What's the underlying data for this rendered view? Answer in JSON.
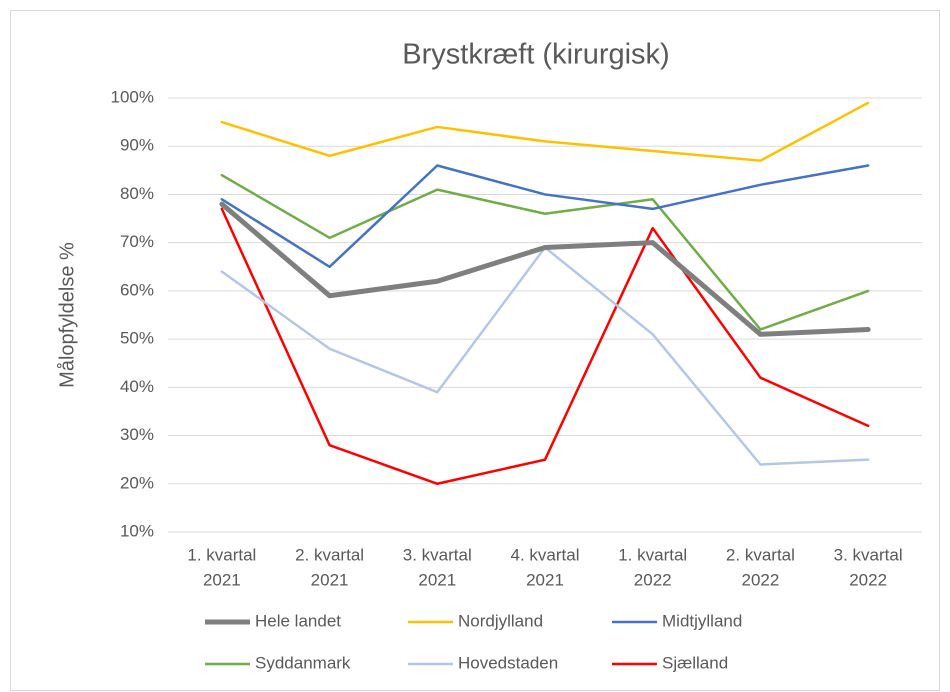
{
  "chart_data": {
    "type": "line",
    "title": "Brystkræft (kirurgisk)",
    "y_label": "Målopfyldelse %",
    "categories": [
      [
        "1. kvartal",
        "2021"
      ],
      [
        "2. kvartal",
        "2021"
      ],
      [
        "3. kvartal",
        "2021"
      ],
      [
        "4. kvartal",
        "2021"
      ],
      [
        "1. kvartal",
        "2022"
      ],
      [
        "2. kvartal",
        "2022"
      ],
      [
        "3. kvartal",
        "2022"
      ]
    ],
    "series": [
      {
        "name": "Hele landet",
        "color": "#7f7f7f",
        "width": 5,
        "values": [
          78,
          59,
          62,
          69,
          70,
          51,
          52
        ]
      },
      {
        "name": "Nordjylland",
        "color": "#ffc000",
        "width": 2.5,
        "values": [
          95,
          88,
          94,
          91,
          89,
          87,
          99
        ]
      },
      {
        "name": "Midtjylland",
        "color": "#4472c4",
        "width": 2.5,
        "values": [
          79,
          65,
          86,
          80,
          77,
          82,
          86
        ]
      },
      {
        "name": "Syddanmark",
        "color": "#70ad47",
        "width": 2.5,
        "values": [
          84,
          71,
          81,
          76,
          79,
          52,
          60
        ]
      },
      {
        "name": "Hovedstaden",
        "color": "#b4c7e7",
        "width": 2.5,
        "values": [
          64,
          48,
          39,
          69,
          51,
          24,
          25
        ]
      },
      {
        "name": "Sjælland",
        "color": "#ff0000",
        "width": 2.5,
        "values": [
          77,
          28,
          20,
          25,
          73,
          42,
          32
        ]
      }
    ],
    "ylim": [
      10,
      100
    ],
    "yticks": [
      {
        "value": 10,
        "label": "10%"
      },
      {
        "value": 20,
        "label": "20%"
      },
      {
        "value": 30,
        "label": "30%"
      },
      {
        "value": 40,
        "label": "40%"
      },
      {
        "value": 50,
        "label": "50%"
      },
      {
        "value": 60,
        "label": "60%"
      },
      {
        "value": 70,
        "label": "70%"
      },
      {
        "value": 80,
        "label": "80%"
      },
      {
        "value": 90,
        "label": "90%"
      },
      {
        "value": 100,
        "label": "100%"
      }
    ],
    "grid": true,
    "legend": "bottom"
  }
}
